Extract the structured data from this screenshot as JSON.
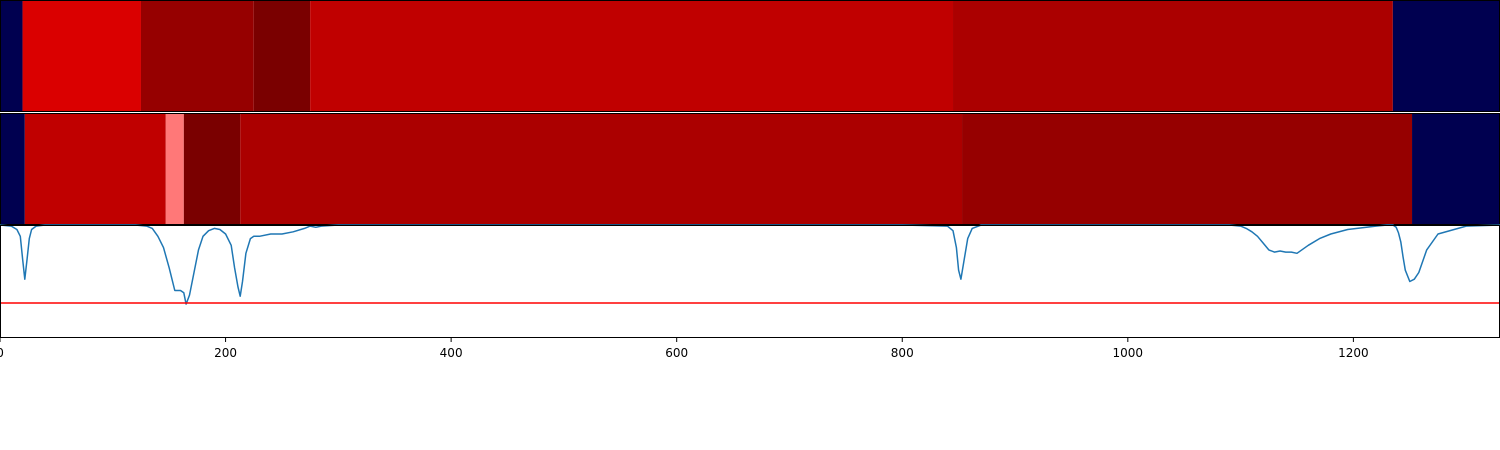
{
  "chart_data": [
    {
      "type": "heatmap",
      "xlim": [
        0,
        1330
      ],
      "segments": [
        {
          "start": 0,
          "end": 20,
          "color": "#000050"
        },
        {
          "start": 20,
          "end": 125,
          "color": "#da0000"
        },
        {
          "start": 125,
          "end": 225,
          "color": "#960000"
        },
        {
          "start": 225,
          "end": 275,
          "color": "#7a0000"
        },
        {
          "start": 275,
          "end": 845,
          "color": "#c00000"
        },
        {
          "start": 845,
          "end": 1235,
          "color": "#ab0000"
        },
        {
          "start": 1235,
          "end": 1330,
          "color": "#000050"
        }
      ]
    },
    {
      "type": "heatmap",
      "xlim": [
        0,
        1330
      ],
      "segments": [
        {
          "start": 0,
          "end": 22,
          "color": "#000050"
        },
        {
          "start": 22,
          "end": 147,
          "color": "#c00000"
        },
        {
          "start": 147,
          "end": 163,
          "color": "#ff7878"
        },
        {
          "start": 163,
          "end": 213,
          "color": "#7a0000"
        },
        {
          "start": 213,
          "end": 853,
          "color": "#ab0000"
        },
        {
          "start": 853,
          "end": 1252,
          "color": "#960000"
        },
        {
          "start": 1252,
          "end": 1330,
          "color": "#000050"
        }
      ]
    },
    {
      "type": "line",
      "xlim": [
        0,
        1330
      ],
      "ylim": [
        0,
        1
      ],
      "xticks": [
        0,
        200,
        400,
        600,
        800,
        1000,
        1200
      ],
      "xtick_labels": [
        "0",
        "200",
        "400",
        "600",
        "800",
        "1000",
        "1200"
      ],
      "threshold": {
        "y": 0.31,
        "color": "#ff0000"
      },
      "series": [
        {
          "color": "#1f77b4",
          "x": [
            0,
            10,
            15,
            18,
            20,
            22,
            24,
            26,
            28,
            32,
            40,
            60,
            100,
            120,
            130,
            135,
            140,
            145,
            150,
            155,
            160,
            163,
            165,
            168,
            172,
            176,
            180,
            185,
            190,
            195,
            200,
            205,
            208,
            211,
            213,
            215,
            218,
            222,
            225,
            230,
            240,
            250,
            260,
            270,
            275,
            280,
            285,
            300,
            310,
            320,
            400,
            600,
            800,
            840,
            845,
            848,
            850,
            852,
            855,
            858,
            862,
            870,
            900,
            1000,
            1090,
            1100,
            1105,
            1110,
            1115,
            1120,
            1125,
            1130,
            1135,
            1140,
            1145,
            1150,
            1160,
            1170,
            1180,
            1195,
            1220,
            1230,
            1235,
            1238,
            1240,
            1242,
            1244,
            1246,
            1250,
            1254,
            1258,
            1265,
            1275,
            1300,
            1330
          ],
          "y": [
            1.0,
            0.99,
            0.96,
            0.9,
            0.7,
            0.52,
            0.7,
            0.88,
            0.96,
            0.99,
            1.0,
            1.0,
            1.0,
            1.0,
            0.99,
            0.97,
            0.9,
            0.8,
            0.62,
            0.42,
            0.42,
            0.4,
            0.3,
            0.38,
            0.58,
            0.78,
            0.9,
            0.95,
            0.97,
            0.96,
            0.92,
            0.82,
            0.62,
            0.45,
            0.37,
            0.5,
            0.75,
            0.88,
            0.9,
            0.9,
            0.92,
            0.92,
            0.94,
            0.97,
            0.99,
            0.98,
            0.99,
            1.0,
            1.0,
            1.0,
            1.0,
            1.0,
            1.0,
            0.99,
            0.95,
            0.8,
            0.6,
            0.52,
            0.7,
            0.88,
            0.97,
            1.0,
            1.0,
            1.0,
            1.0,
            0.99,
            0.97,
            0.94,
            0.9,
            0.84,
            0.78,
            0.76,
            0.77,
            0.76,
            0.76,
            0.75,
            0.82,
            0.88,
            0.92,
            0.96,
            0.99,
            1.0,
            1.0,
            0.98,
            0.93,
            0.85,
            0.72,
            0.6,
            0.5,
            0.52,
            0.58,
            0.78,
            0.92,
            0.99,
            1.0
          ]
        }
      ]
    }
  ]
}
